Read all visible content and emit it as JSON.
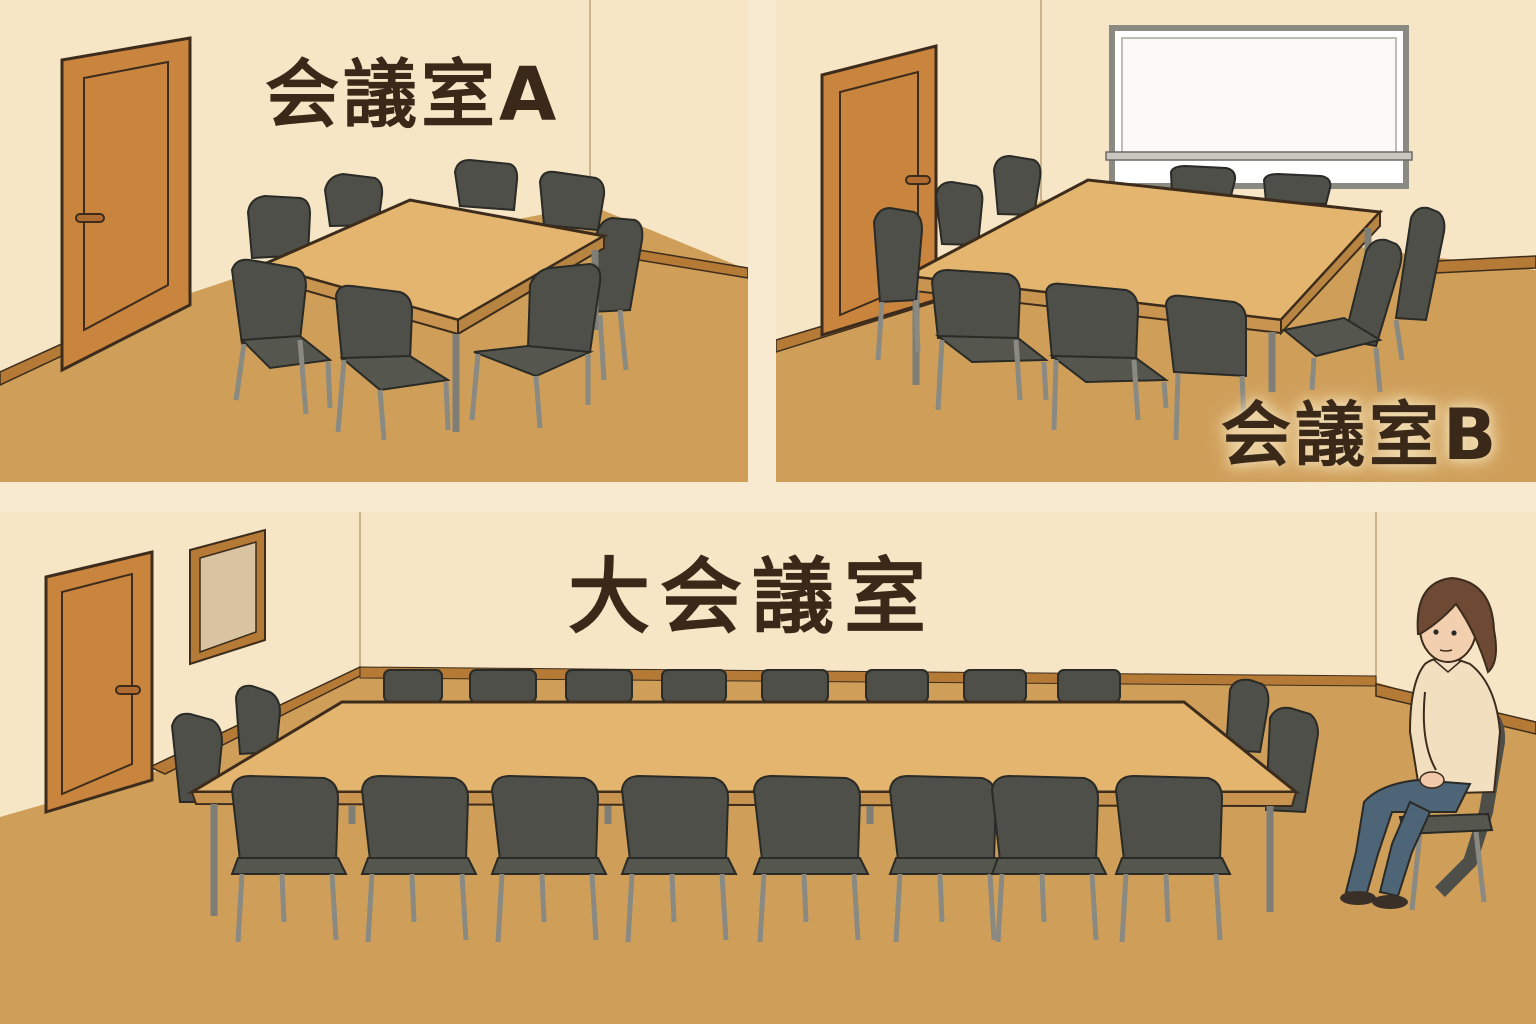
{
  "rooms": {
    "room_a": {
      "label": "会議室A"
    },
    "room_b": {
      "label": "会議室B"
    },
    "large_room": {
      "label": "大会議室"
    }
  },
  "colors": {
    "wall": "#f6e6c6",
    "floor": "#cf9f5a",
    "baseboard": "#b57a36",
    "door": "#c9843e",
    "table": "#e4b56e",
    "chair": "#4d4f48",
    "chair_legs": "#8a8a82",
    "outline": "#3d2c1c",
    "label_text": "#3a2818"
  },
  "icons": {
    "door": "door-icon",
    "whiteboard": "whiteboard-icon",
    "frame": "picture-frame-icon",
    "person": "seated-woman-icon"
  }
}
